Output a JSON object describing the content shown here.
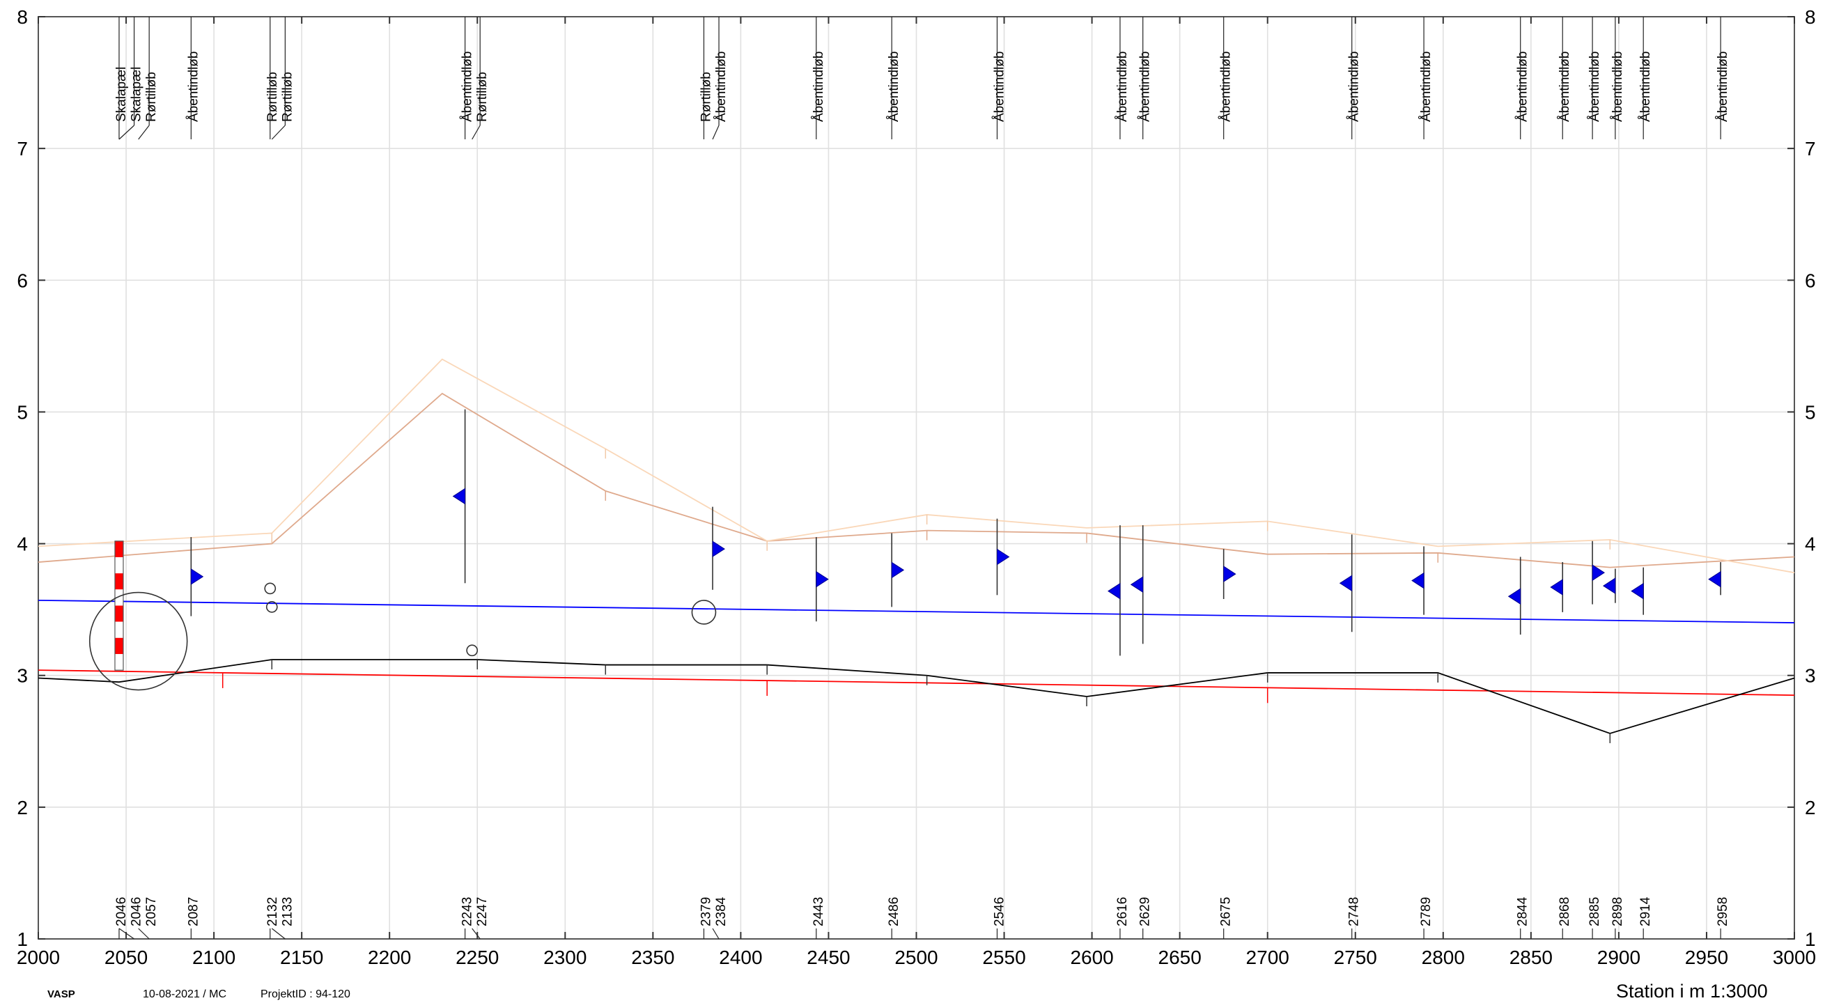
{
  "chart_data": {
    "type": "line",
    "title": "",
    "xlabel": "Station i m  1:3000",
    "ylabel": "",
    "xlim": [
      2000,
      3000
    ],
    "ylim": [
      1,
      8
    ],
    "x_ticks": [
      "2000",
      "2050",
      "2100",
      "2150",
      "2200",
      "2250",
      "2300",
      "2350",
      "2400",
      "2450",
      "2500",
      "2550",
      "2600",
      "2650",
      "2700",
      "2750",
      "2800",
      "2850",
      "2900",
      "2950",
      "3000"
    ],
    "y_ticks": [
      "1",
      "2",
      "3",
      "4",
      "5",
      "6",
      "7",
      "8"
    ],
    "grid": true,
    "series": [
      {
        "key": "bund_red",
        "color": "#ff0000",
        "x": [
          2000,
          3000
        ],
        "y": [
          3.04,
          2.85
        ]
      },
      {
        "key": "vandspejl_blue",
        "color": "#0000ff",
        "x": [
          2000,
          3000
        ],
        "y": [
          3.57,
          3.4
        ]
      },
      {
        "key": "terraen_black",
        "color": "#000000",
        "x": [
          2000,
          2046,
          2133,
          2250,
          2323,
          2415,
          2506,
          2597,
          2700,
          2797,
          2895,
          3000
        ],
        "y": [
          2.98,
          2.95,
          3.12,
          3.12,
          3.08,
          3.08,
          3.0,
          2.84,
          3.02,
          3.02,
          2.56,
          2.98
        ]
      },
      {
        "key": "bank_left",
        "color": "#dfa98c",
        "x": [
          2000,
          2133,
          2230,
          2323,
          2415,
          2506,
          2597,
          2700,
          2797,
          2895,
          3000
        ],
        "y": [
          3.86,
          4.0,
          5.14,
          4.4,
          4.02,
          4.1,
          4.08,
          3.92,
          3.93,
          3.82,
          3.9
        ]
      },
      {
        "key": "bank_right",
        "color": "#fad7b8",
        "x": [
          2000,
          2133,
          2230,
          2323,
          2415,
          2506,
          2597,
          2700,
          2797,
          2895,
          3000
        ],
        "y": [
          3.98,
          4.08,
          5.4,
          4.72,
          4.02,
          4.22,
          4.12,
          4.17,
          3.98,
          4.03,
          3.78
        ]
      }
    ],
    "stations": [
      {
        "x": 2046,
        "label": "2046",
        "name": "Skalapæl"
      },
      {
        "x": 2046,
        "label": "2046",
        "name": "Skalapæl"
      },
      {
        "x": 2057,
        "label": "2057",
        "name": "Rørtilløb"
      },
      {
        "x": 2087,
        "label": "2087",
        "name": "Åbentindløb"
      },
      {
        "x": 2132,
        "label": "2132",
        "name": "Rørtilløb"
      },
      {
        "x": 2133,
        "label": "2133",
        "name": "Rørtilløb"
      },
      {
        "x": 2243,
        "label": "2243",
        "name": "Åbentindløb"
      },
      {
        "x": 2247,
        "label": "2247",
        "name": "Rørtilløb"
      },
      {
        "x": 2379,
        "label": "2379",
        "name": "Rørtilløb"
      },
      {
        "x": 2384,
        "label": "2384",
        "name": "Åbentindløb"
      },
      {
        "x": 2443,
        "label": "2443",
        "name": "Åbentindløb"
      },
      {
        "x": 2486,
        "label": "2486",
        "name": "Åbentindløb"
      },
      {
        "x": 2546,
        "label": "2546",
        "name": "Åbentindløb"
      },
      {
        "x": 2616,
        "label": "2616",
        "name": "Åbentindløb"
      },
      {
        "x": 2629,
        "label": "2629",
        "name": "Åbentindløb"
      },
      {
        "x": 2675,
        "label": "2675",
        "name": "Åbentindløb"
      },
      {
        "x": 2748,
        "label": "2748",
        "name": "Åbentindløb"
      },
      {
        "x": 2789,
        "label": "2789",
        "name": "Åbentindløb"
      },
      {
        "x": 2844,
        "label": "2844",
        "name": "Åbentindløb"
      },
      {
        "x": 2868,
        "label": "2868",
        "name": "Åbentindløb"
      },
      {
        "x": 2885,
        "label": "2885",
        "name": "Åbentindløb"
      },
      {
        "x": 2898,
        "label": "2898",
        "name": "Åbentindløb"
      },
      {
        "x": 2914,
        "label": "2914",
        "name": "Åbentindløb"
      },
      {
        "x": 2958,
        "label": "2958",
        "name": "Åbentindløb"
      }
    ],
    "inlets": [
      {
        "x": 2087,
        "y": 3.75,
        "top": 4.05,
        "bottom": 3.45,
        "dir": "right"
      },
      {
        "x": 2243,
        "y": 4.36,
        "top": 5.02,
        "bottom": 3.7,
        "dir": "left"
      },
      {
        "x": 2384,
        "y": 3.96,
        "top": 4.28,
        "bottom": 3.65,
        "dir": "right"
      },
      {
        "x": 2443,
        "y": 3.73,
        "top": 4.05,
        "bottom": 3.41,
        "dir": "right"
      },
      {
        "x": 2486,
        "y": 3.8,
        "top": 4.08,
        "bottom": 3.52,
        "dir": "right"
      },
      {
        "x": 2546,
        "y": 3.9,
        "top": 4.19,
        "bottom": 3.61,
        "dir": "right"
      },
      {
        "x": 2616,
        "y": 3.64,
        "top": 4.14,
        "bottom": 3.15,
        "dir": "left"
      },
      {
        "x": 2629,
        "y": 3.69,
        "top": 4.14,
        "bottom": 3.24,
        "dir": "left"
      },
      {
        "x": 2675,
        "y": 3.77,
        "top": 3.96,
        "bottom": 3.58,
        "dir": "right"
      },
      {
        "x": 2748,
        "y": 3.7,
        "top": 4.07,
        "bottom": 3.33,
        "dir": "left"
      },
      {
        "x": 2789,
        "y": 3.72,
        "top": 3.98,
        "bottom": 3.46,
        "dir": "left"
      },
      {
        "x": 2844,
        "y": 3.6,
        "top": 3.9,
        "bottom": 3.31,
        "dir": "left"
      },
      {
        "x": 2868,
        "y": 3.67,
        "top": 3.86,
        "bottom": 3.48,
        "dir": "left"
      },
      {
        "x": 2885,
        "y": 3.78,
        "top": 4.02,
        "bottom": 3.54,
        "dir": "right"
      },
      {
        "x": 2898,
        "y": 3.68,
        "top": 3.81,
        "bottom": 3.55,
        "dir": "left"
      },
      {
        "x": 2914,
        "y": 3.64,
        "top": 3.82,
        "bottom": 3.46,
        "dir": "left"
      },
      {
        "x": 2958,
        "y": 3.73,
        "top": 3.86,
        "bottom": 3.61,
        "dir": "left"
      }
    ],
    "pipe_outlets": [
      {
        "x": 2057,
        "y": 3.26,
        "radius_m": 0.37
      },
      {
        "x": 2132,
        "y": 3.66,
        "radius_m": 0.04
      },
      {
        "x": 2133,
        "y": 3.52,
        "radius_m": 0.04
      },
      {
        "x": 2247,
        "y": 3.19,
        "radius_m": 0.04
      },
      {
        "x": 2379,
        "y": 3.48,
        "radius_m": 0.09
      }
    ],
    "scale_pole": {
      "x": 2046,
      "bottom": 3.04,
      "top": 4.02
    },
    "red_ticks_x": [
      2105,
      2415,
      2700
    ],
    "black_ticks_x": [
      2133,
      2250,
      2323,
      2415,
      2506,
      2597,
      2700,
      2797,
      2895
    ],
    "bank_left_ticks_x": [
      2323,
      2506,
      2597,
      2797
    ],
    "bank_right_ticks_x": [
      2133,
      2323,
      2415,
      2506,
      2700,
      2895
    ]
  },
  "footer": {
    "org": "VASP",
    "date_user": "10-08-2021 / MC",
    "project": "ProjektID : 94-120",
    "station_label": "Station i m  1:3000"
  }
}
